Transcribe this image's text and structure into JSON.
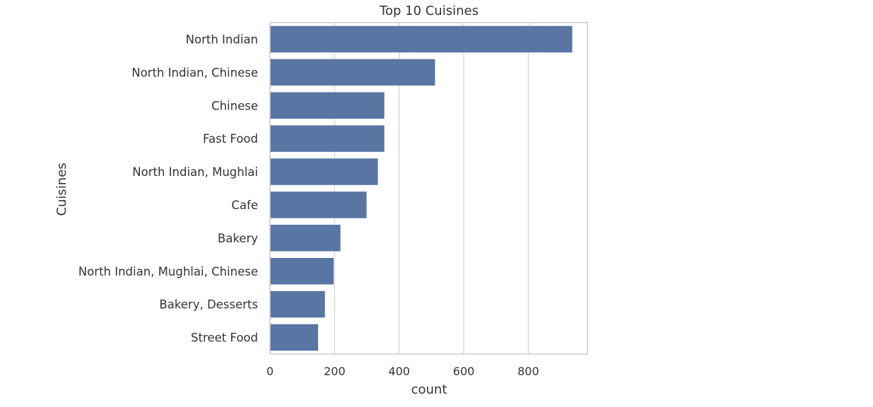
{
  "chart_data": {
    "type": "bar",
    "orientation": "horizontal",
    "title": "Top 10 Cuisines",
    "xlabel": "count",
    "ylabel": "Cuisines",
    "categories": [
      "North Indian",
      "North Indian, Chinese",
      "Chinese",
      "Fast Food",
      "North Indian, Mughlai",
      "Cafe",
      "Bakery",
      "North Indian, Mughlai, Chinese",
      "Bakery, Desserts",
      "Street Food"
    ],
    "values": [
      936,
      511,
      354,
      354,
      334,
      299,
      218,
      197,
      170,
      149
    ],
    "xlim": [
      0,
      983
    ],
    "xticks": [
      0,
      200,
      400,
      600,
      800
    ],
    "grid": "vertical",
    "bar_color": "#5875a4",
    "grid_color": "#d9d9d9",
    "spine_color": "#cccccc"
  }
}
